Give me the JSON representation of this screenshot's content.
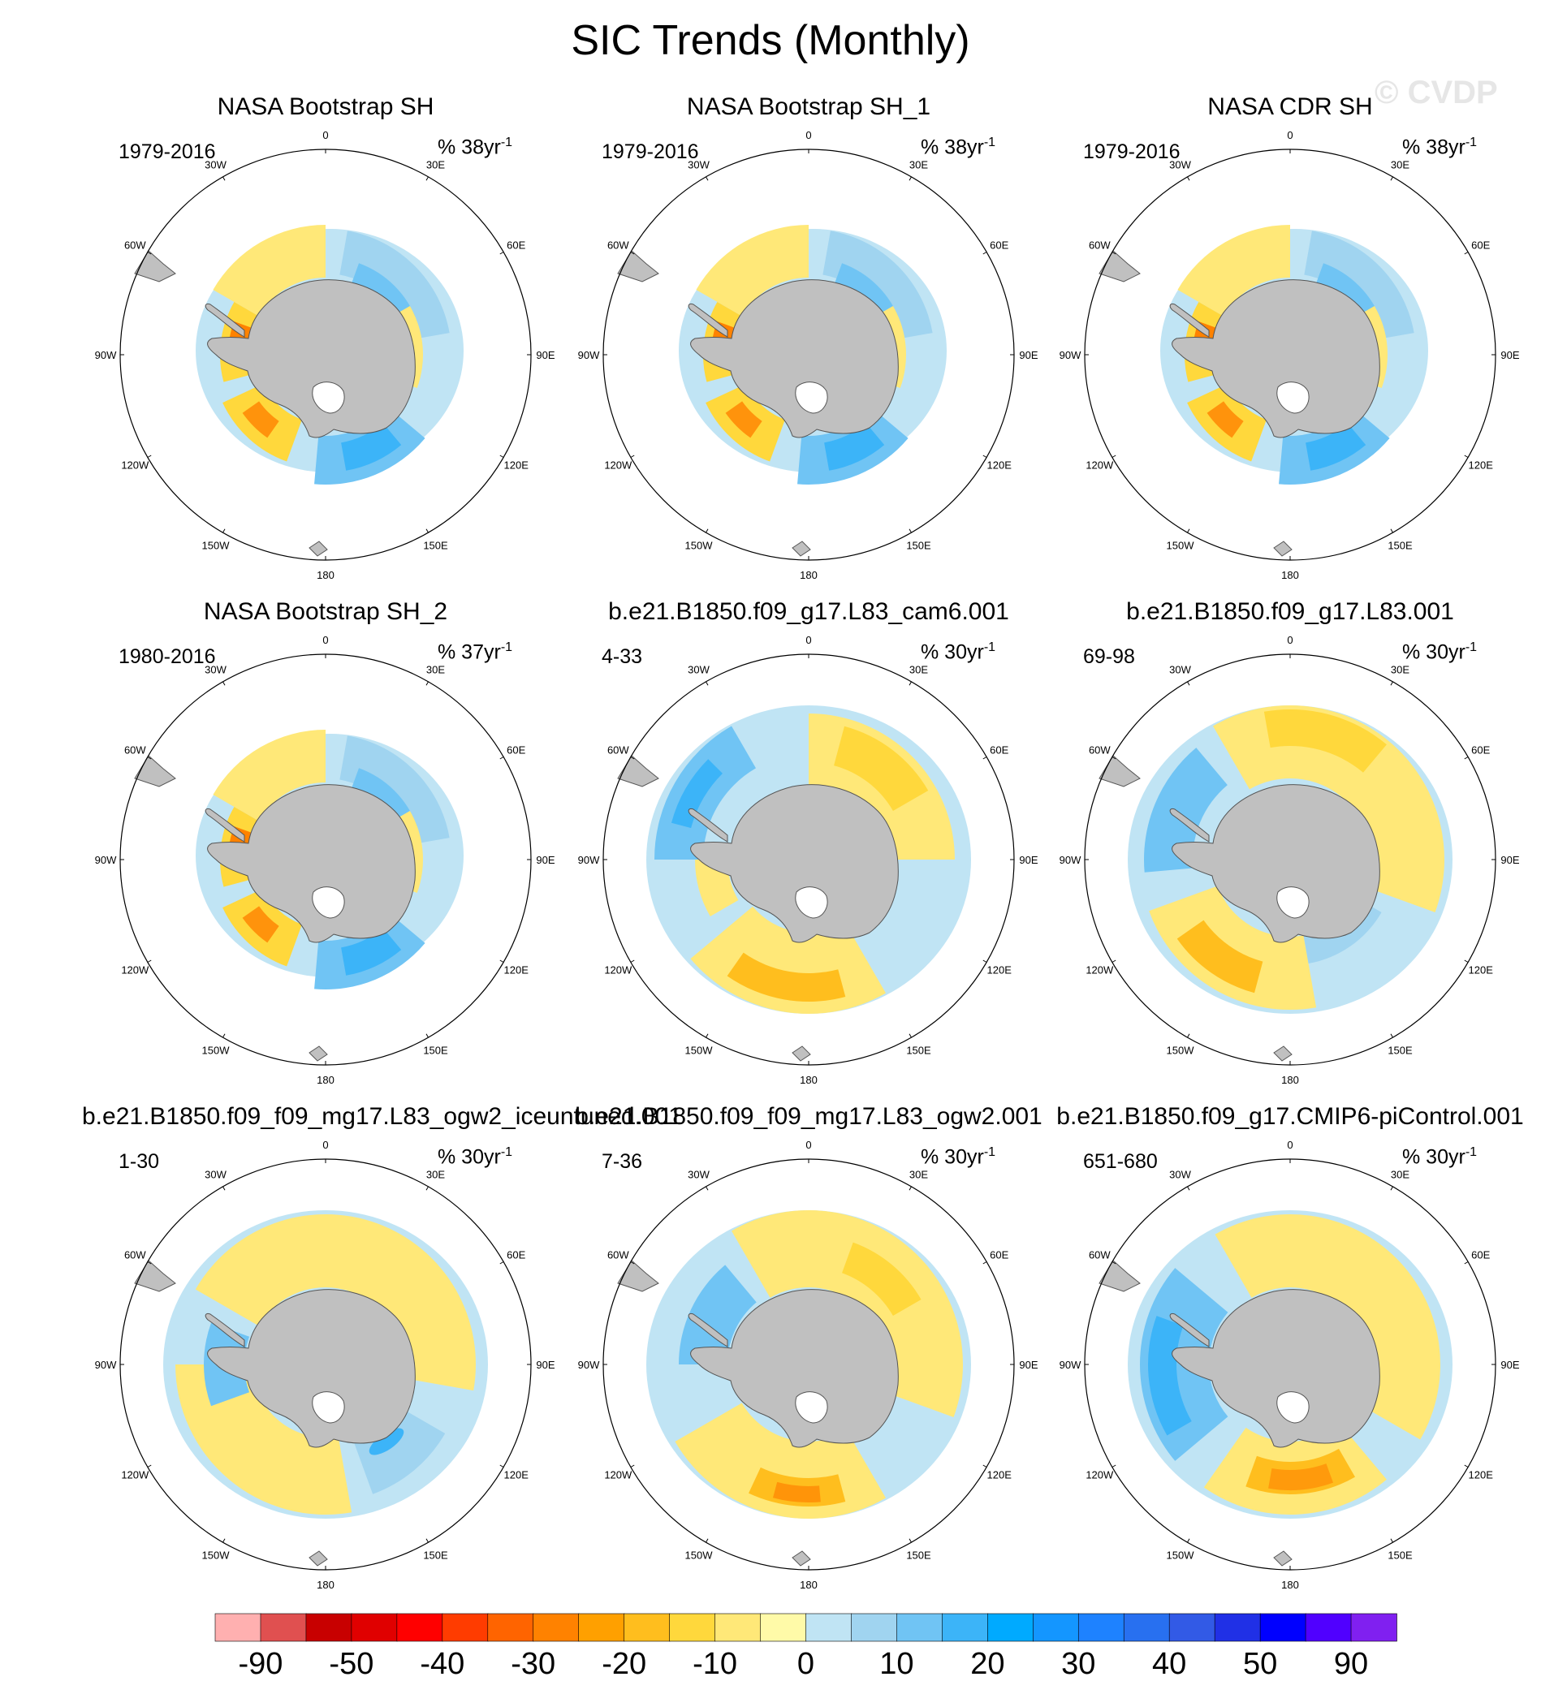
{
  "title": "SIC Trends (Monthly)",
  "watermark": "© CVDP",
  "lon_labels": [
    "0",
    "30E",
    "60E",
    "90E",
    "120E",
    "150E",
    "180",
    "150W",
    "120W",
    "90W",
    "60W",
    "30W"
  ],
  "colors": {
    "land": "#c0c0c0",
    "frame": "#000000"
  },
  "panels": [
    {
      "title": "NASA Bootstrap SH",
      "period": "1979-2016",
      "units_base": "% 38yr",
      "units_exp": "-1",
      "pattern": "obs"
    },
    {
      "title": "NASA Bootstrap SH_1",
      "period": "1979-2016",
      "units_base": "% 38yr",
      "units_exp": "-1",
      "pattern": "obs"
    },
    {
      "title": "NASA CDR SH",
      "period": "1979-2016",
      "units_base": "% 38yr",
      "units_exp": "-1",
      "pattern": "obs"
    },
    {
      "title": "NASA Bootstrap SH_2",
      "period": "1980-2016",
      "units_base": "% 37yr",
      "units_exp": "-1",
      "pattern": "obs"
    },
    {
      "title": "b.e21.B1850.f09_g17.L83_cam6.001",
      "period": "4-33",
      "units_base": "% 30yr",
      "units_exp": "-1",
      "pattern": "model_a"
    },
    {
      "title": "b.e21.B1850.f09_g17.L83.001",
      "period": "69-98",
      "units_base": "% 30yr",
      "units_exp": "-1",
      "pattern": "model_b"
    },
    {
      "title": "b.e21.B1850.f09_f09_mg17.L83_ogw2_iceuntuned.001",
      "period": "1-30",
      "units_base": "% 30yr",
      "units_exp": "-1",
      "pattern": "model_c"
    },
    {
      "title": "b.e21.B1850.f09_f09_mg17.L83_ogw2.001",
      "period": "7-36",
      "units_base": "% 30yr",
      "units_exp": "-1",
      "pattern": "model_d"
    },
    {
      "title": "b.e21.B1850.f09_g17.CMIP6-piControl.001",
      "period": "651-680",
      "units_base": "% 30yr",
      "units_exp": "-1",
      "pattern": "model_e"
    }
  ],
  "chart_data": {
    "type": "heatmap",
    "projection": "south polar stereographic",
    "title": "SIC Trends (Monthly)",
    "colorbar": {
      "tick_labels": [
        "-90",
        "-50",
        "-40",
        "-30",
        "-20",
        "-10",
        "0",
        "10",
        "20",
        "30",
        "40",
        "50",
        "90"
      ],
      "levels": [
        -100,
        -90,
        -70,
        -50,
        -45,
        -40,
        -35,
        -30,
        -25,
        -20,
        -15,
        -10,
        -5,
        0,
        5,
        10,
        15,
        20,
        25,
        30,
        35,
        40,
        45,
        50,
        70,
        90,
        100
      ],
      "colors": [
        "#ffb0b0",
        "#e05050",
        "#c80000",
        "#e00000",
        "#ff0000",
        "#ff3c00",
        "#ff6400",
        "#ff8200",
        "#ffa000",
        "#ffbe1e",
        "#ffd83c",
        "#ffe878",
        "#fffaa8",
        "#c0e4f4",
        "#a0d4f0",
        "#70c4f4",
        "#3cb4f8",
        "#00aaff",
        "#1496ff",
        "#1e82ff",
        "#2870f0",
        "#325ae6",
        "#2030e6",
        "#0000ff",
        "#5000ff",
        "#8020f0"
      ]
    }
  }
}
